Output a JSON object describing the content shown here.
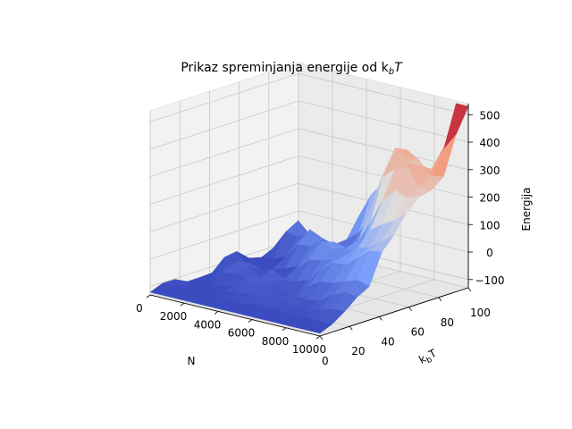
{
  "chart_data": {
    "type": "surface3d",
    "title": "Prikaz spreminjanja energije od k",
    "title_sub": "b",
    "title_tail": "T",
    "xlabel": "N",
    "ylabel_base": "k",
    "ylabel_sub": "b",
    "ylabel_tail": "T",
    "zlabel": "Energija",
    "x_ticks": [
      "0",
      "2000",
      "4000",
      "6000",
      "8000",
      "10000"
    ],
    "y_ticks": [
      "0",
      "20",
      "40",
      "60",
      "80",
      "100"
    ],
    "z_ticks": [
      "−100",
      "0",
      "100",
      "200",
      "300",
      "400",
      "500"
    ],
    "xlim": [
      0,
      10000
    ],
    "ylim": [
      0,
      100
    ],
    "zlim": [
      -130,
      540
    ],
    "colormap": "coolwarm",
    "grid": true
  }
}
